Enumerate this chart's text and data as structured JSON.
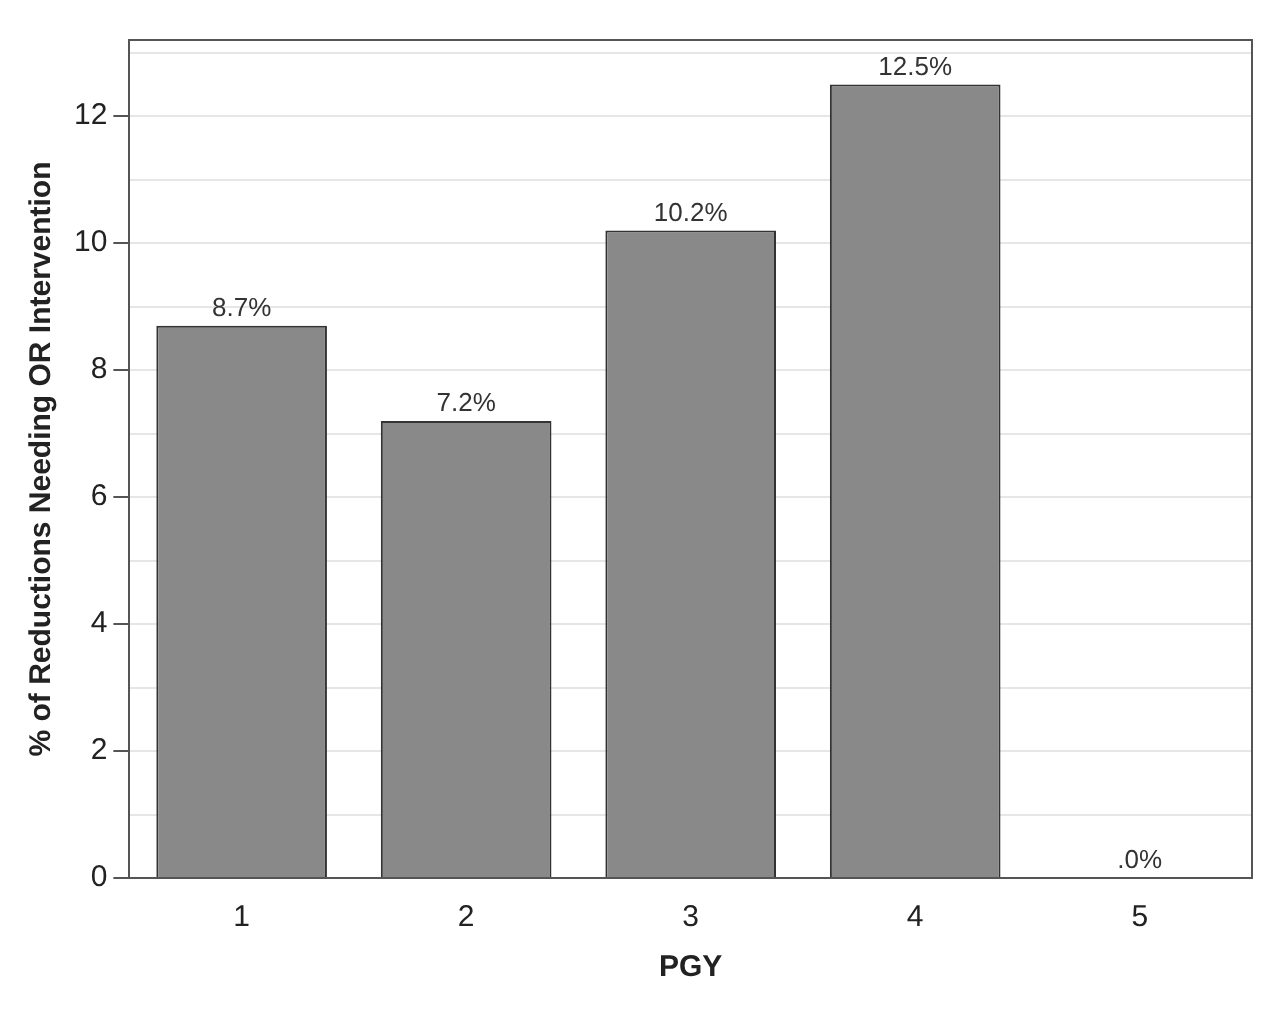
{
  "chart_data": {
    "type": "bar",
    "xlabel": "PGY",
    "ylabel": "% of Reductions Needing OR Intervention",
    "categories": [
      "1",
      "2",
      "3",
      "4",
      "5"
    ],
    "values": [
      8.7,
      7.2,
      10.2,
      12.5,
      0
    ],
    "value_labels": [
      "8.7%",
      "7.2%",
      "10.2%",
      "12.5%",
      ".0%"
    ],
    "color": "#898989",
    "ylim": [
      0,
      13.2
    ],
    "yticks": [
      0,
      {
        "value": 1,
        "label": null
      },
      2,
      {
        "value": 3,
        "label": null
      },
      4,
      {
        "value": 5,
        "label": null
      },
      6,
      {
        "value": 7,
        "label": null
      },
      8,
      {
        "value": 9,
        "label": null
      },
      10,
      {
        "value": 11,
        "label": null
      },
      12,
      {
        "value": 13,
        "label": null
      }
    ],
    "grid": "y"
  }
}
